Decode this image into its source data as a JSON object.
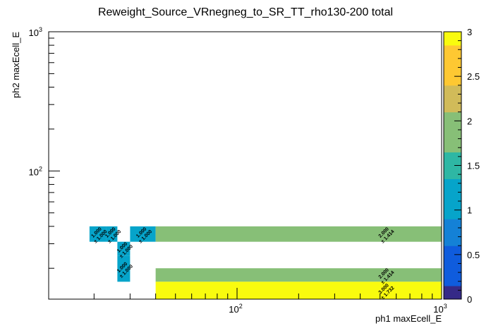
{
  "chart_data": {
    "type": "heatmap",
    "title": "Reweight_Source_VRnegneg_to_SR_TT_rho130-200 total",
    "xlabel": "ph1 maxEcell_E",
    "ylabel": "ph2 maxEcell_E",
    "x_scale": "log",
    "y_scale": "log",
    "xlim": [
      12,
      1000
    ],
    "ylim": [
      12,
      1000
    ],
    "x_tick_labels": [
      "10^2",
      "10^3"
    ],
    "y_tick_labels": [
      "10^2",
      "10^3"
    ],
    "z_range": [
      0,
      3
    ],
    "z_tick_labels": [
      "0",
      "0.5",
      "1",
      "1.5",
      "2",
      "2.5",
      "3"
    ],
    "cells": [
      {
        "x": [
          19,
          23
        ],
        "y": [
          31,
          40
        ],
        "value": 1.0,
        "label": "1.000",
        "error": "± 1.000"
      },
      {
        "x": [
          23,
          26
        ],
        "y": [
          31,
          40
        ],
        "value": 1.0,
        "label": "1.000",
        "error": "± 1.000"
      },
      {
        "x": [
          30,
          40
        ],
        "y": [
          31,
          40
        ],
        "value": 1.0,
        "label": "1.000",
        "error": "± 1.000"
      },
      {
        "x": [
          40,
          1000
        ],
        "y": [
          31,
          40
        ],
        "value": 2.0,
        "label": "2.000",
        "error": "± 1.414"
      },
      {
        "x": [
          26,
          30
        ],
        "y": [
          24.5,
          31
        ],
        "value": 1.0,
        "label": "1.000",
        "error": "± 1.000"
      },
      {
        "x": [
          26,
          30
        ],
        "y": [
          16,
          24.5
        ],
        "value": 1.0,
        "label": "1.000",
        "error": "± 1.000"
      },
      {
        "x": [
          40,
          1000
        ],
        "y": [
          16,
          20
        ],
        "value": 2.0,
        "label": "2.000",
        "error": "± 1.414"
      },
      {
        "x": [
          40,
          1000
        ],
        "y": [
          12,
          16
        ],
        "value": 3.0,
        "label": "3.000",
        "error": "± 1.732"
      }
    ],
    "palette": [
      "#352a87",
      "#0f5cdd",
      "#1481d6",
      "#06a4ca",
      "#2eb7a4",
      "#87bf77",
      "#d1bb59",
      "#fec832",
      "#f9fb0e"
    ]
  }
}
